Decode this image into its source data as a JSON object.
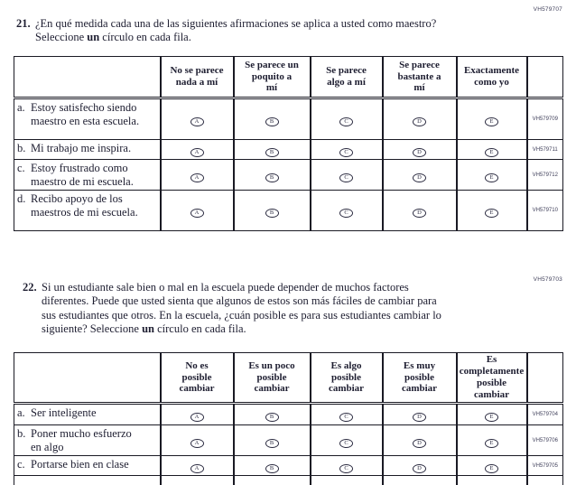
{
  "document": {
    "background": "#ffffff",
    "text_color": "#1d1d30",
    "border_color": "#1a1a24"
  },
  "questions": [
    {
      "number": "21.",
      "code": "VH579707",
      "prompt": {
        "pre": "¿En qué medida cada una de las siguientes afirmaciones se aplica a usted como maestro? Seleccione ",
        "bold": "un",
        "post": " círculo en cada fila."
      },
      "column_headers": [
        [
          "No se parece",
          "nada a mí"
        ],
        [
          "Se parece un",
          "poquito a",
          "mí"
        ],
        [
          "Se parece",
          "algo a mí"
        ],
        [
          "Se parece",
          "bastante a",
          "mí"
        ],
        [
          "Exactamente",
          "como yo"
        ]
      ],
      "options": [
        "A",
        "B",
        "C",
        "D",
        "E"
      ],
      "rows": [
        {
          "letter": "a.",
          "text": "Estoy satisfecho siendo maestro en esta escuela.",
          "code": "VH579709"
        },
        {
          "letter": "b.",
          "text": "Mi trabajo me inspira.",
          "code": "VH579711"
        },
        {
          "letter": "c.",
          "text": "Estoy frustrado como maestro de mi escuela.",
          "code": "VH579712"
        },
        {
          "letter": "d.",
          "text": "Recibo apoyo de los maestros de mi escuela.",
          "code": "VH579710"
        }
      ]
    },
    {
      "number": "22.",
      "code": "VH579703",
      "prompt": {
        "pre": "Si un estudiante sale bien o mal en la escuela puede depender de muchos factores diferentes. Puede que usted sienta que algunos de estos son más fáciles de cambiar para sus estudiantes que otros. En la escuela, ¿cuán posible es para sus estudiantes cambiar lo siguiente? Seleccione ",
        "bold": "un",
        "post": " círculo en cada fila."
      },
      "column_headers": [
        [
          "No es",
          "posible",
          "cambiar"
        ],
        [
          "Es un poco",
          "posible",
          "cambiar"
        ],
        [
          "Es algo",
          "posible",
          "cambiar"
        ],
        [
          "Es muy",
          "posible",
          "cambiar"
        ],
        [
          "Es",
          "completamente",
          "posible",
          "cambiar"
        ]
      ],
      "options": [
        "A",
        "B",
        "C",
        "D",
        "E"
      ],
      "rows": [
        {
          "letter": "a.",
          "text": "Ser inteligente",
          "code": "VH579704"
        },
        {
          "letter": "b.",
          "text": "Poner mucho esfuerzo en algo",
          "code": "VH579706"
        },
        {
          "letter": "c.",
          "text": "Portarse bien en clase",
          "code": "VH579705"
        }
      ]
    }
  ]
}
